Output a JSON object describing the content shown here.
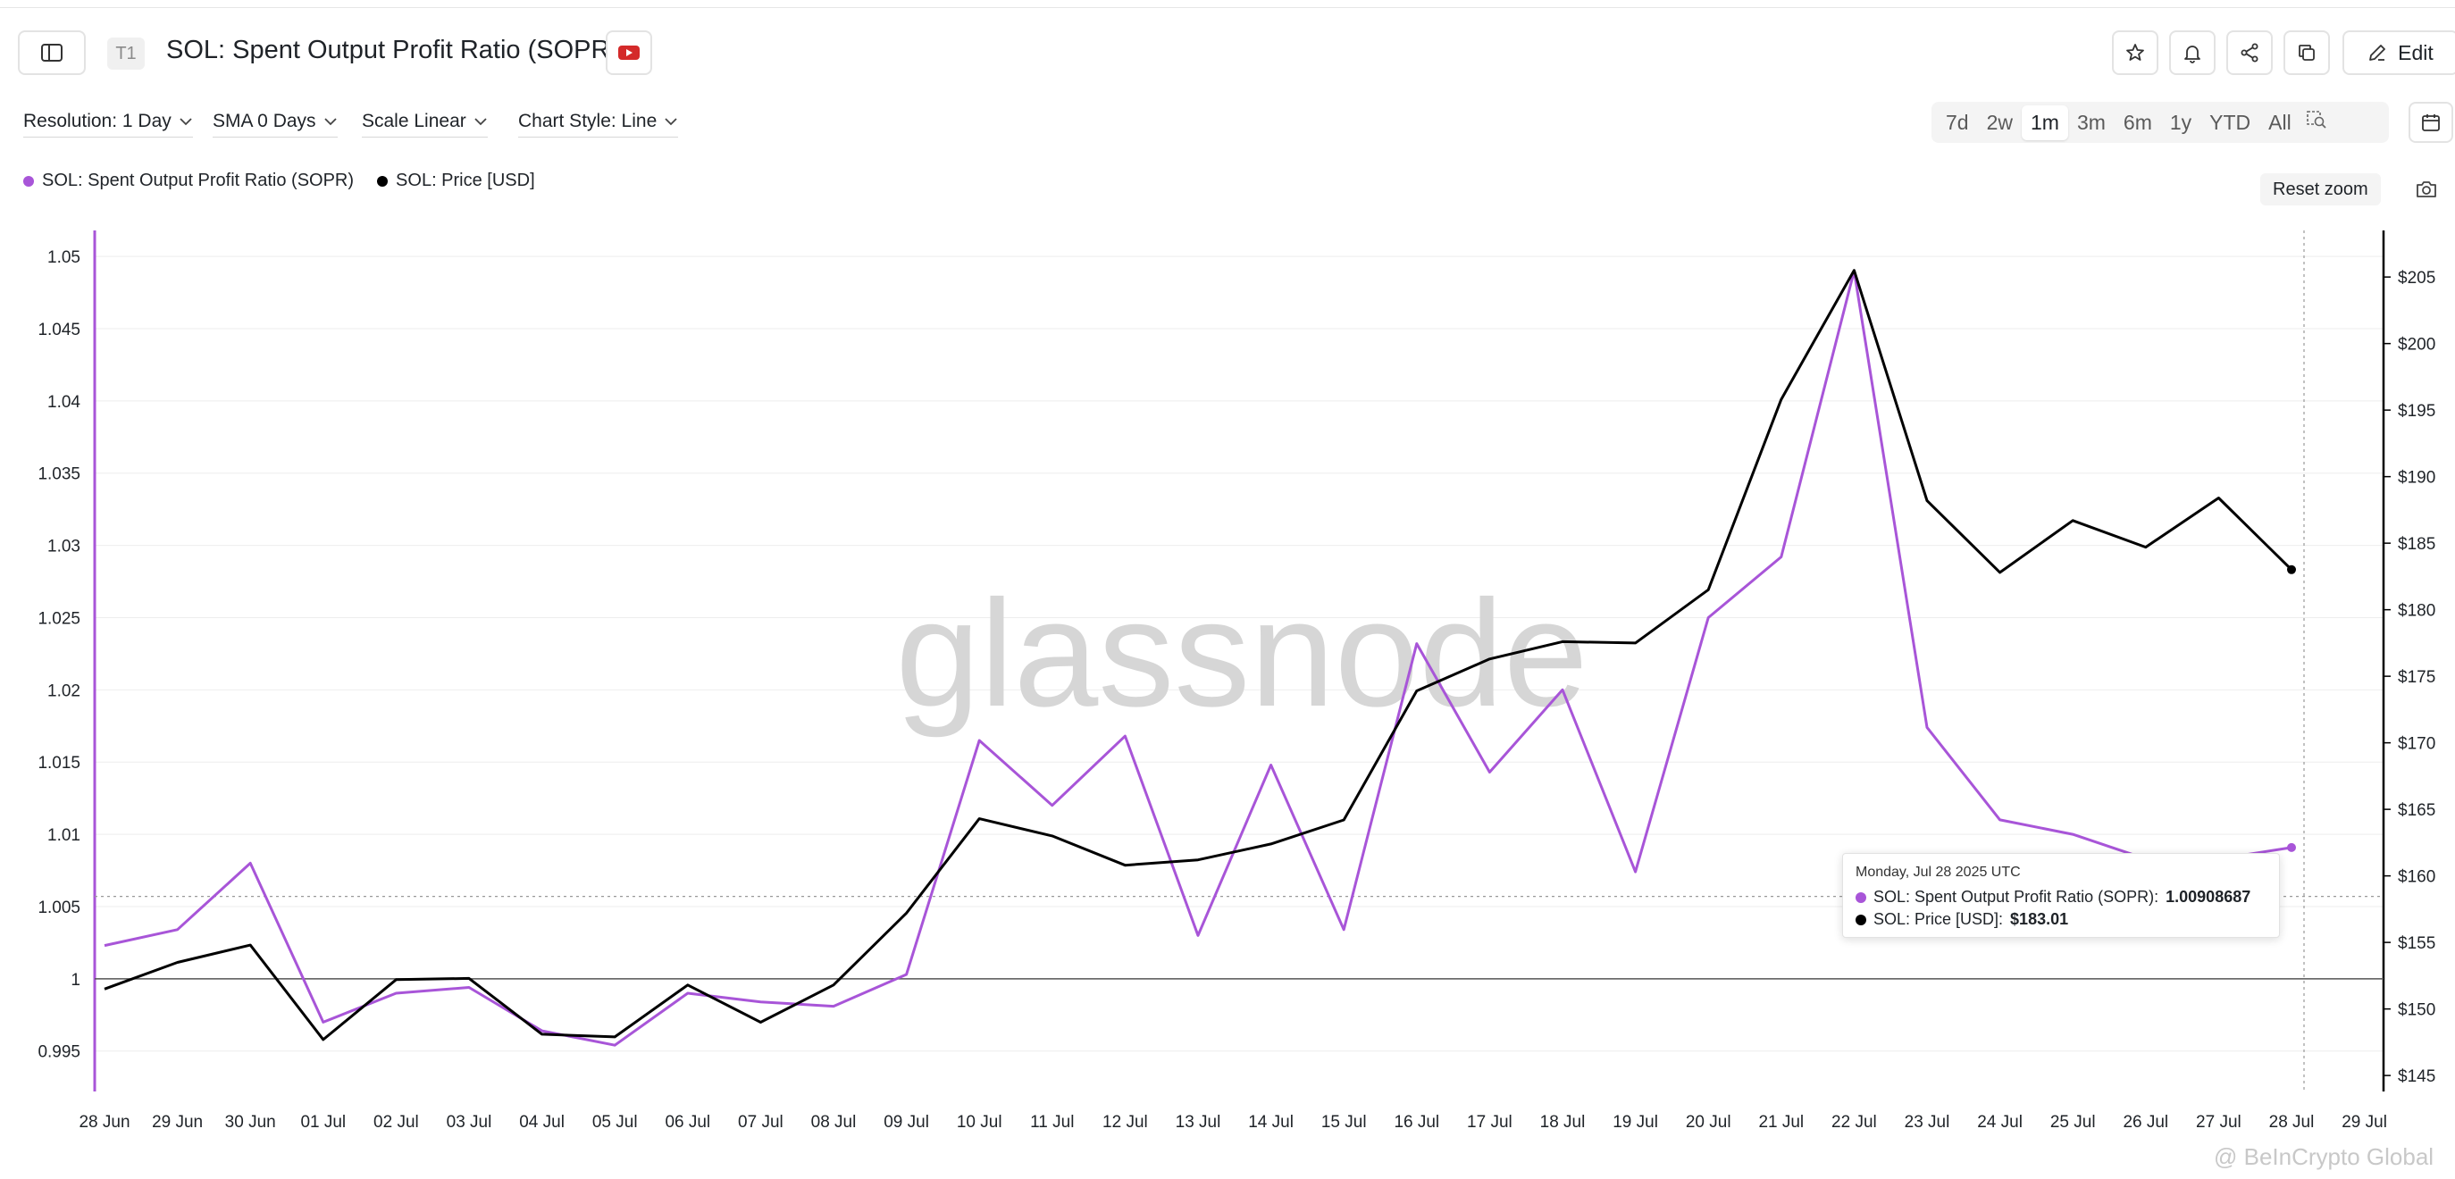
{
  "header": {
    "tag": "T1",
    "title": "SOL: Spent Output Profit Ratio (SOPR)",
    "edit_label": "Edit"
  },
  "controls": {
    "resolution": "Resolution: 1 Day",
    "sma": "SMA 0 Days",
    "scale": "Scale Linear",
    "style": "Chart Style: Line"
  },
  "ranges": [
    "7d",
    "2w",
    "1m",
    "3m",
    "6m",
    "1y",
    "YTD",
    "All"
  ],
  "active_range": "1m",
  "reset_zoom": "Reset zoom",
  "tooltip": {
    "date": "Monday, Jul 28 2025 UTC",
    "sopr_label": "SOL: Spent Output Profit Ratio (SOPR):",
    "sopr_value": "1.00908687",
    "price_label": "SOL: Price [USD]:",
    "price_value": "$183.01"
  },
  "watermark": "glassnode",
  "watermark_source": "@ BeInCrypto Global",
  "colors": {
    "sopr": "#a855d8",
    "price": "#000000"
  },
  "chart_data": {
    "type": "line",
    "x": [
      "28 Jun",
      "29 Jun",
      "30 Jun",
      "01 Jul",
      "02 Jul",
      "03 Jul",
      "04 Jul",
      "05 Jul",
      "06 Jul",
      "07 Jul",
      "08 Jul",
      "09 Jul",
      "10 Jul",
      "11 Jul",
      "12 Jul",
      "13 Jul",
      "14 Jul",
      "15 Jul",
      "16 Jul",
      "17 Jul",
      "18 Jul",
      "19 Jul",
      "20 Jul",
      "21 Jul",
      "22 Jul",
      "23 Jul",
      "24 Jul",
      "25 Jul",
      "26 Jul",
      "27 Jul",
      "28 Jul"
    ],
    "x_ticks": [
      "28 Jun",
      "29 Jun",
      "30 Jun",
      "01 Jul",
      "02 Jul",
      "03 Jul",
      "04 Jul",
      "05 Jul",
      "06 Jul",
      "07 Jul",
      "08 Jul",
      "09 Jul",
      "10 Jul",
      "11 Jul",
      "12 Jul",
      "13 Jul",
      "14 Jul",
      "15 Jul",
      "16 Jul",
      "17 Jul",
      "18 Jul",
      "19 Jul",
      "20 Jul",
      "21 Jul",
      "22 Jul",
      "23 Jul",
      "24 Jul",
      "25 Jul",
      "26 Jul",
      "27 Jul",
      "28 Jul",
      "29 Jul"
    ],
    "series": [
      {
        "name": "SOL: Spent Output Profit Ratio (SOPR)",
        "axis": "left",
        "values": [
          1.0023,
          1.0034,
          1.008,
          0.997,
          0.999,
          0.9994,
          0.9964,
          0.9954,
          0.999,
          0.9984,
          0.9981,
          1.0003,
          1.0165,
          1.012,
          1.0168,
          1.003,
          1.0148,
          1.0034,
          1.0232,
          1.0143,
          1.02,
          1.0074,
          1.025,
          1.0292,
          1.049,
          1.0174,
          1.011,
          1.01,
          1.0083,
          1.0083,
          1.00908687
        ]
      },
      {
        "name": "SOL: Price [USD]",
        "axis": "right",
        "values": [
          151.5,
          153.5,
          154.8,
          147.7,
          152.2,
          152.3,
          148.1,
          147.9,
          151.8,
          149.0,
          151.8,
          157.2,
          164.3,
          163.0,
          160.8,
          161.2,
          162.4,
          164.2,
          173.9,
          176.3,
          177.6,
          177.5,
          181.5,
          195.8,
          205.5,
          188.2,
          182.8,
          186.7,
          184.7,
          188.4,
          183.01
        ]
      }
    ],
    "y_left": {
      "ticks": [
        0.995,
        1,
        1.005,
        1.01,
        1.015,
        1.02,
        1.025,
        1.03,
        1.035,
        1.04,
        1.045,
        1.05
      ],
      "tick_labels": [
        "0.995",
        "1",
        "1.005",
        "1.01",
        "1.015",
        "1.02",
        "1.025",
        "1.03",
        "1.035",
        "1.04",
        "1.045",
        "1.05"
      ],
      "range": [
        0.9922,
        1.0518
      ]
    },
    "y_right": {
      "ticks": [
        145,
        150,
        155,
        160,
        165,
        170,
        175,
        180,
        185,
        190,
        195,
        200,
        205
      ],
      "tick_labels": [
        "$145",
        "$150",
        "$155",
        "$160",
        "$165",
        "$170",
        "$175",
        "$180",
        "$185",
        "$190",
        "$195",
        "$200",
        "$205"
      ],
      "range": [
        143.8,
        208.5
      ]
    },
    "reference_line": 1,
    "crosshair": {
      "x": "28 Jul",
      "y_left": 1.0057
    },
    "grid": true,
    "legend_position": "top-left"
  }
}
